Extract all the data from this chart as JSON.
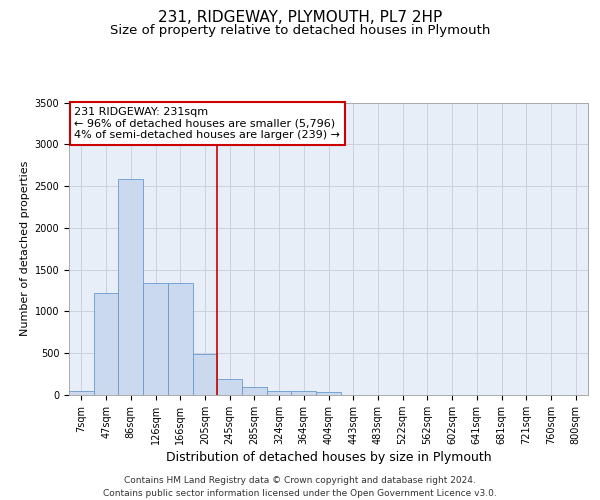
{
  "title": "231, RIDGEWAY, PLYMOUTH, PL7 2HP",
  "subtitle": "Size of property relative to detached houses in Plymouth",
  "xlabel": "Distribution of detached houses by size in Plymouth",
  "ylabel": "Number of detached properties",
  "categories": [
    "7sqm",
    "47sqm",
    "86sqm",
    "126sqm",
    "166sqm",
    "205sqm",
    "245sqm",
    "285sqm",
    "324sqm",
    "364sqm",
    "404sqm",
    "443sqm",
    "483sqm",
    "522sqm",
    "562sqm",
    "602sqm",
    "641sqm",
    "681sqm",
    "721sqm",
    "760sqm",
    "800sqm"
  ],
  "values": [
    50,
    1220,
    2580,
    1340,
    1340,
    490,
    195,
    100,
    50,
    45,
    30,
    0,
    0,
    0,
    0,
    0,
    0,
    0,
    0,
    0,
    0
  ],
  "bar_color": "#cad9ed",
  "bar_edge_color": "#6699cc",
  "vline_x": 5.5,
  "ylim": [
    0,
    3500
  ],
  "yticks": [
    0,
    500,
    1000,
    1500,
    2000,
    2500,
    3000,
    3500
  ],
  "annotation_text_line1": "231 RIDGEWAY: 231sqm",
  "annotation_text_line2": "← 96% of detached houses are smaller (5,796)",
  "annotation_text_line3": "4% of semi-detached houses are larger (239) →",
  "footer_line1": "Contains HM Land Registry data © Crown copyright and database right 2024.",
  "footer_line2": "Contains public sector information licensed under the Open Government Licence v3.0.",
  "background_color": "#e8eef8",
  "grid_color": "#c8ccd8",
  "title_fontsize": 11,
  "subtitle_fontsize": 9.5,
  "xlabel_fontsize": 9,
  "ylabel_fontsize": 8,
  "tick_fontsize": 7,
  "annot_fontsize": 8,
  "footer_fontsize": 6.5
}
